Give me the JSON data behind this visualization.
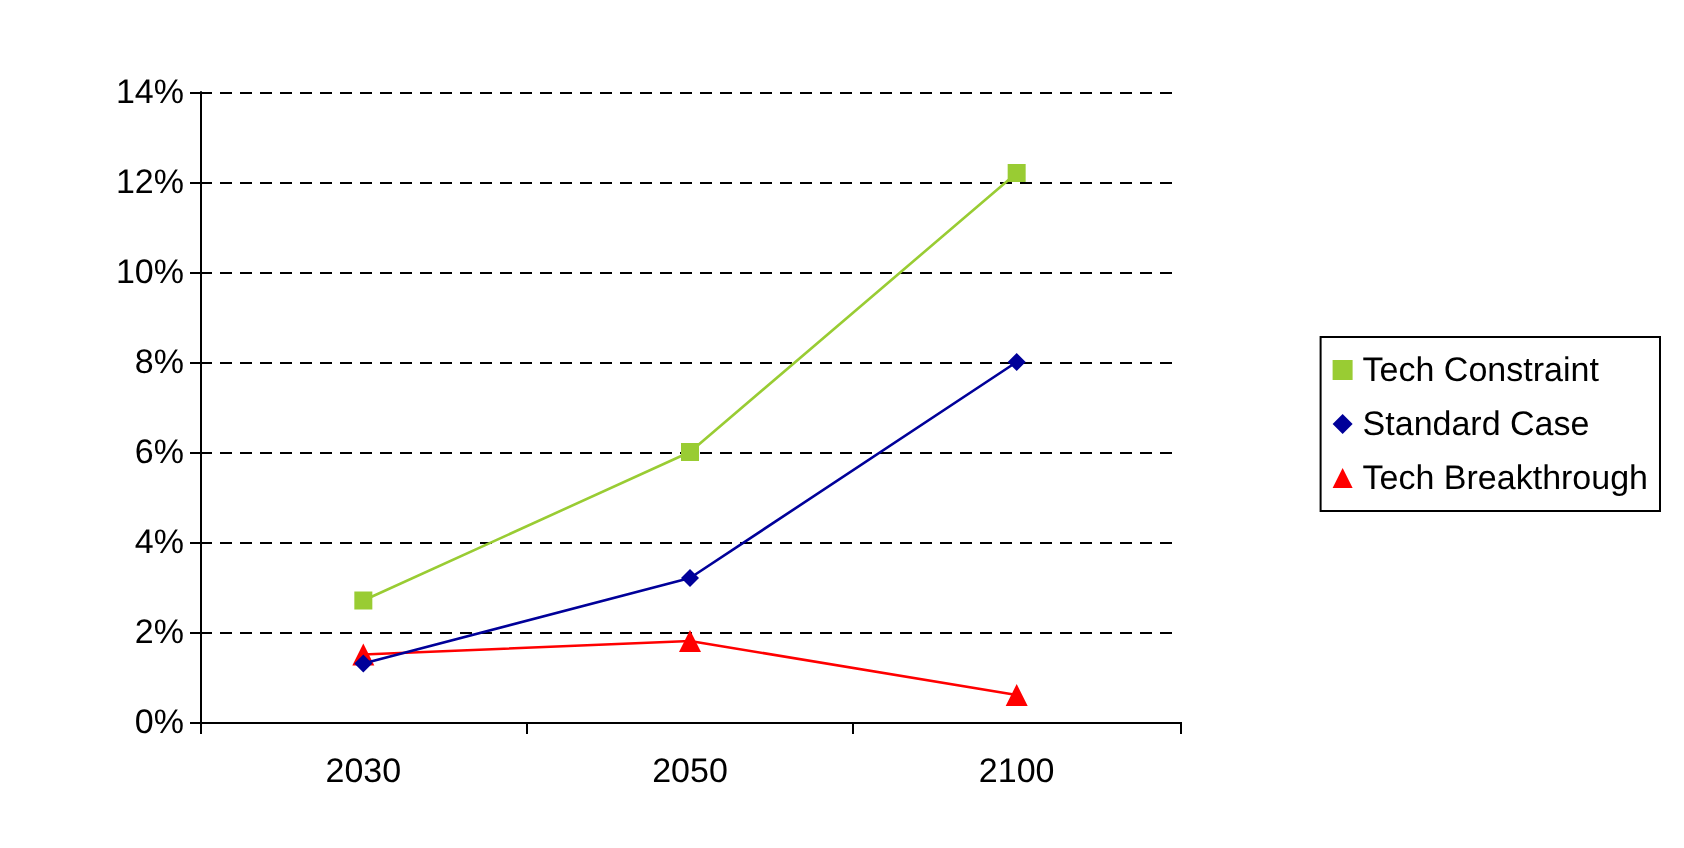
{
  "chart_data": {
    "type": "line",
    "categories": [
      "2030",
      "2050",
      "2100"
    ],
    "series": [
      {
        "name": "Tech Constraint",
        "color": "#99cc33",
        "marker": "square",
        "values": [
          2.7,
          6.0,
          12.2
        ]
      },
      {
        "name": "Standard Case",
        "color": "#000099",
        "marker": "diamond",
        "values": [
          1.3,
          3.2,
          8.0
        ]
      },
      {
        "name": "Tech Breakthrough",
        "color": "#ff0000",
        "marker": "triangle",
        "values": [
          1.5,
          1.8,
          0.6
        ]
      }
    ],
    "ylim": [
      0,
      14
    ],
    "yticks": [
      {
        "value": 0,
        "label": "0%"
      },
      {
        "value": 2,
        "label": "2%"
      },
      {
        "value": 4,
        "label": "4%"
      },
      {
        "value": 6,
        "label": "6%"
      },
      {
        "value": 8,
        "label": "8%"
      },
      {
        "value": 10,
        "label": "10%"
      },
      {
        "value": 12,
        "label": "12%"
      },
      {
        "value": 14,
        "label": "14%"
      }
    ],
    "grid": "y",
    "legend": "right"
  }
}
